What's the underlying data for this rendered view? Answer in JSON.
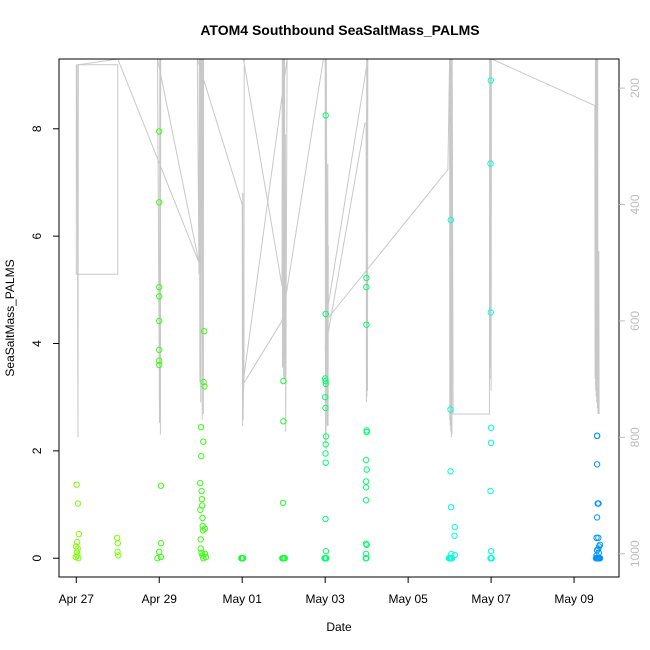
{
  "chart_data": {
    "type": "scatter",
    "title": "ATOM4 Southbound SeaSaltMass_PALMS",
    "xlabel": "Date",
    "ylabel": "SeaSaltMass_PALMS",
    "xlim": [
      "2018-04-26T14:00",
      "2018-05-10T02:00"
    ],
    "ylim": [
      -0.35,
      9.3
    ],
    "x_ticks": [
      {
        "date": "2018-04-27",
        "label": "Apr 27"
      },
      {
        "date": "2018-04-29",
        "label": "Apr 29"
      },
      {
        "date": "2018-05-01",
        "label": "May 01"
      },
      {
        "date": "2018-05-03",
        "label": "May 03"
      },
      {
        "date": "2018-05-05",
        "label": "May 05"
      },
      {
        "date": "2018-05-07",
        "label": "May 07"
      },
      {
        "date": "2018-05-09",
        "label": "May 09"
      }
    ],
    "y_ticks": [
      0,
      2,
      4,
      6,
      8
    ],
    "right_axis": {
      "range": [
        1040,
        150
      ],
      "ticks": [
        200,
        400,
        600,
        800,
        1000
      ],
      "color": "#bdbdbd"
    },
    "grid": false,
    "marker": "open-circle",
    "line_color": "#c8c8c8",
    "series": [
      {
        "color": "#7cff00",
        "points": [
          [
            "2018-04-27T00:10",
            1.37
          ],
          [
            "2018-04-27T01:00",
            1.02
          ],
          [
            "2018-04-27T01:30",
            0.45
          ],
          [
            "2018-04-27T00:30",
            0.3
          ],
          [
            "2018-04-26T23:50",
            0.22
          ],
          [
            "2018-04-27T00:20",
            0.12
          ],
          [
            "2018-04-27T00:40",
            0.05
          ],
          [
            "2018-04-26T23:40",
            0.02
          ],
          [
            "2018-04-27T01:10",
            0.0
          ],
          [
            "2018-04-27T00:50",
            0.18
          ],
          [
            "2018-04-27T23:40",
            0.38
          ],
          [
            "2018-04-28T00:00",
            0.28
          ],
          [
            "2018-04-27T23:50",
            0.12
          ],
          [
            "2018-04-28T00:20",
            0.05
          ]
        ]
      },
      {
        "color": "#38ff10",
        "points": [
          [
            "2018-04-29T00:00",
            7.95
          ],
          [
            "2018-04-29T00:00",
            6.63
          ],
          [
            "2018-04-29T00:00",
            5.05
          ],
          [
            "2018-04-29T00:00",
            4.88
          ],
          [
            "2018-04-29T00:00",
            4.42
          ],
          [
            "2018-04-29T00:00",
            3.88
          ],
          [
            "2018-04-29T00:00",
            3.68
          ],
          [
            "2018-04-29T00:00",
            3.6
          ],
          [
            "2018-04-29T01:00",
            1.35
          ],
          [
            "2018-04-29T01:00",
            0.28
          ],
          [
            "2018-04-29T00:00",
            0.12
          ],
          [
            "2018-04-29T01:00",
            0.02
          ],
          [
            "2018-04-28T23:00",
            0.0
          ],
          [
            "2018-04-29T23:40",
            1.4
          ],
          [
            "2018-04-29T23:50",
            0.9
          ],
          [
            "2018-04-30T00:00",
            0.35
          ],
          [
            "2018-04-30T00:10",
            2.44
          ],
          [
            "2018-04-30T00:20",
            1.9
          ],
          [
            "2018-04-30T00:30",
            1.25
          ],
          [
            "2018-04-30T00:40",
            1.1
          ],
          [
            "2018-04-30T00:50",
            0.98
          ],
          [
            "2018-04-30T01:00",
            0.75
          ],
          [
            "2018-04-30T01:10",
            0.6
          ],
          [
            "2018-04-30T01:20",
            0.52
          ],
          [
            "2018-04-30T01:30",
            2.17
          ],
          [
            "2018-04-30T02:00",
            4.23
          ],
          [
            "2018-04-30T01:40",
            3.28
          ],
          [
            "2018-04-30T02:10",
            3.2
          ],
          [
            "2018-04-30T02:20",
            0.55
          ],
          [
            "2018-04-30T00:00",
            0.18
          ],
          [
            "2018-04-30T00:30",
            0.1
          ],
          [
            "2018-04-30T01:00",
            0.05
          ],
          [
            "2018-04-30T01:30",
            0.0
          ],
          [
            "2018-04-30T02:30",
            0.08
          ],
          [
            "2018-04-30T03:00",
            0.02
          ]
        ]
      },
      {
        "color": "#18ff30",
        "points": [
          [
            "2018-04-30T23:30",
            0.0
          ],
          [
            "2018-04-30T23:50",
            0.0
          ],
          [
            "2018-05-01T00:10",
            0.0
          ],
          [
            "2018-05-01T00:30",
            0.0
          ],
          [
            "2018-05-01T23:50",
            3.3
          ],
          [
            "2018-05-01T23:50",
            2.55
          ],
          [
            "2018-05-01T23:40",
            1.03
          ],
          [
            "2018-05-01T23:10",
            0.0
          ],
          [
            "2018-05-01T23:40",
            0.0
          ],
          [
            "2018-05-02T00:10",
            0.0
          ],
          [
            "2018-05-02T00:40",
            0.0
          ]
        ]
      },
      {
        "color": "#00ff6a",
        "points": [
          [
            "2018-05-03T00:20",
            8.25
          ],
          [
            "2018-05-03T00:20",
            4.55
          ],
          [
            "2018-05-03T00:00",
            3.35
          ],
          [
            "2018-05-03T00:10",
            3.3
          ],
          [
            "2018-05-03T00:20",
            3.25
          ],
          [
            "2018-05-03T00:00",
            3.0
          ],
          [
            "2018-05-03T00:10",
            2.8
          ],
          [
            "2018-05-03T00:30",
            2.27
          ],
          [
            "2018-05-03T00:20",
            2.12
          ],
          [
            "2018-05-03T00:10",
            1.95
          ],
          [
            "2018-05-03T00:20",
            1.78
          ],
          [
            "2018-05-03T00:10",
            0.73
          ],
          [
            "2018-05-03T00:30",
            0.13
          ],
          [
            "2018-05-02T23:40",
            0.0
          ],
          [
            "2018-05-03T00:00",
            0.0
          ],
          [
            "2018-05-03T00:20",
            0.0
          ],
          [
            "2018-05-03T00:40",
            0.0
          ],
          [
            "2018-05-03T23:50",
            5.22
          ],
          [
            "2018-05-03T23:50",
            5.05
          ],
          [
            "2018-05-03T23:50",
            4.35
          ],
          [
            "2018-05-04T00:00",
            2.38
          ],
          [
            "2018-05-04T00:00",
            2.35
          ],
          [
            "2018-05-03T23:40",
            1.83
          ],
          [
            "2018-05-04T00:00",
            1.65
          ],
          [
            "2018-05-03T23:40",
            1.43
          ],
          [
            "2018-05-03T23:40",
            1.32
          ],
          [
            "2018-05-03T23:40",
            1.08
          ],
          [
            "2018-05-03T23:40",
            0.27
          ],
          [
            "2018-05-04T00:00",
            0.25
          ],
          [
            "2018-05-03T23:40",
            0.08
          ],
          [
            "2018-05-03T23:30",
            0.0
          ],
          [
            "2018-05-03T23:50",
            0.0
          ]
        ]
      },
      {
        "color": "#00ffd8",
        "points": [
          [
            "2018-05-06T00:40",
            6.3
          ],
          [
            "2018-05-06T00:30",
            2.77
          ],
          [
            "2018-05-06T00:30",
            1.62
          ],
          [
            "2018-05-06T00:50",
            0.95
          ],
          [
            "2018-05-06T03:00",
            0.58
          ],
          [
            "2018-05-06T02:50",
            0.42
          ],
          [
            "2018-05-06T01:00",
            0.08
          ],
          [
            "2018-05-06T03:00",
            0.06
          ],
          [
            "2018-05-05T23:40",
            0.0
          ],
          [
            "2018-05-06T00:00",
            0.0
          ],
          [
            "2018-05-06T00:20",
            0.0
          ],
          [
            "2018-05-06T00:40",
            0.0
          ],
          [
            "2018-05-06T01:00",
            0.0
          ],
          [
            "2018-05-06T01:20",
            0.0
          ],
          [
            "2018-05-06T23:50",
            8.9
          ],
          [
            "2018-05-06T23:40",
            7.35
          ],
          [
            "2018-05-06T23:50",
            4.58
          ],
          [
            "2018-05-07T00:00",
            2.43
          ],
          [
            "2018-05-07T00:00",
            2.15
          ],
          [
            "2018-05-06T23:40",
            1.25
          ],
          [
            "2018-05-07T00:00",
            0.13
          ],
          [
            "2018-05-06T23:40",
            0.0
          ],
          [
            "2018-05-07T00:00",
            0.0
          ],
          [
            "2018-05-07T00:20",
            0.0
          ]
        ]
      },
      {
        "color": "#0094ff",
        "points": [
          [
            "2018-05-09T13:20",
            2.28
          ],
          [
            "2018-05-09T13:20",
            2.28
          ],
          [
            "2018-05-09T13:20",
            1.75
          ],
          [
            "2018-05-09T13:40",
            1.02
          ],
          [
            "2018-05-09T13:20",
            0.76
          ],
          [
            "2018-05-09T13:00",
            0.38
          ],
          [
            "2018-05-09T14:00",
            0.38
          ],
          [
            "2018-05-09T14:30",
            0.22
          ],
          [
            "2018-05-09T15:00",
            0.25
          ],
          [
            "2018-05-09T14:00",
            0.18
          ],
          [
            "2018-05-09T13:20",
            0.15
          ],
          [
            "2018-05-09T14:20",
            0.1
          ],
          [
            "2018-05-09T13:00",
            0.05
          ],
          [
            "2018-05-09T12:40",
            0.0
          ],
          [
            "2018-05-09T13:00",
            0.0
          ],
          [
            "2018-05-09T13:20",
            0.0
          ],
          [
            "2018-05-09T13:40",
            0.0
          ],
          [
            "2018-05-09T14:00",
            0.0
          ],
          [
            "2018-05-09T14:20",
            0.0
          ],
          [
            "2018-05-09T14:40",
            0.0
          ],
          [
            "2018-05-09T15:00",
            0.0
          ],
          [
            "2018-05-09T14:10",
            1.02
          ]
        ]
      }
    ],
    "secondary_line": {
      "color": "#c8c8c8",
      "points": [
        [
          "2018-04-27T00:00",
          160
        ],
        [
          "2018-04-27T00:00",
          520
        ],
        [
          "2018-04-28T00:00",
          520
        ],
        [
          "2018-04-28T00:00",
          160
        ],
        [
          "2018-04-27T00:30",
          160
        ],
        [
          "2018-04-27T01:00",
          800
        ],
        [
          "2018-04-27T01:10",
          160
        ],
        [
          "2018-04-28T00:00",
          150
        ],
        [
          "2018-04-29T23:00",
          500
        ],
        [
          "2018-04-28T23:00",
          150
        ],
        [
          "2018-04-29T00:10",
          775
        ],
        [
          "2018-04-29T00:20",
          150
        ],
        [
          "2018-04-29T00:30",
          150
        ],
        [
          "2018-04-29T00:40",
          795
        ],
        [
          "2018-04-29T00:50",
          150
        ],
        [
          "2018-04-29T22:00",
          150
        ],
        [
          "2018-04-29T23:00",
          520
        ],
        [
          "2018-04-29T23:10",
          150
        ],
        [
          "2018-04-29T23:30",
          705
        ],
        [
          "2018-04-29T23:40",
          150
        ],
        [
          "2018-04-29T23:50",
          150
        ],
        [
          "2018-04-30T00:00",
          740
        ],
        [
          "2018-04-30T00:20",
          150
        ],
        [
          "2018-04-30T00:40",
          150
        ],
        [
          "2018-04-30T00:50",
          770
        ],
        [
          "2018-04-30T01:00",
          150
        ],
        [
          "2018-04-30T01:20",
          150
        ],
        [
          "2018-04-30T01:30",
          760
        ],
        [
          "2018-04-30T01:40",
          150
        ],
        [
          "2018-04-29T22:00",
          150
        ],
        [
          "2018-05-01T00:00",
          400
        ],
        [
          "2018-05-01T00:10",
          780
        ],
        [
          "2018-05-01T00:20",
          380
        ],
        [
          "2018-05-01T00:30",
          770
        ],
        [
          "2018-05-01T00:40",
          720
        ],
        [
          "2018-05-01T01:00",
          710
        ],
        [
          "2018-05-01T01:10",
          150
        ],
        [
          "2018-05-01T00:40",
          150
        ],
        [
          "2018-05-01T23:00",
          540
        ],
        [
          "2018-05-01T23:10",
          150
        ],
        [
          "2018-05-01T23:20",
          680
        ],
        [
          "2018-05-01T23:30",
          150
        ],
        [
          "2018-05-01T23:40",
          680
        ],
        [
          "2018-05-01T23:50",
          150
        ],
        [
          "2018-05-02T00:00",
          700
        ],
        [
          "2018-05-02T00:10",
          150
        ],
        [
          "2018-05-02T00:20",
          660
        ],
        [
          "2018-05-02T00:30",
          150
        ],
        [
          "2018-05-02T00:40",
          700
        ],
        [
          "2018-05-02T01:00",
          280
        ],
        [
          "2018-05-02T01:10",
          790
        ],
        [
          "2018-05-02T02:00",
          150
        ],
        [
          "2018-05-01T00:20",
          710
        ],
        [
          "2018-05-01T23:00",
          600
        ],
        [
          "2018-05-02T23:00",
          150
        ],
        [
          "2018-05-03T00:00",
          150
        ],
        [
          "2018-05-03T00:10",
          810
        ],
        [
          "2018-05-03T00:20",
          150
        ],
        [
          "2018-05-03T00:30",
          820
        ],
        [
          "2018-05-03T00:40",
          150
        ],
        [
          "2018-05-03T01:00",
          470
        ],
        [
          "2018-05-03T01:10",
          780
        ],
        [
          "2018-05-03T01:30",
          330
        ],
        [
          "2018-05-03T01:40",
          780
        ],
        [
          "2018-05-03T01:50",
          470
        ],
        [
          "2018-05-03T00:00",
          650
        ],
        [
          "2018-05-03T23:00",
          260
        ],
        [
          "2018-05-03T23:40",
          260
        ],
        [
          "2018-05-03T23:50",
          740
        ],
        [
          "2018-05-04T00:00",
          150
        ],
        [
          "2018-05-04T00:10",
          730
        ],
        [
          "2018-05-04T00:20",
          150
        ],
        [
          "2018-05-04T00:30",
          720
        ],
        [
          "2018-05-04T00:40",
          150
        ],
        [
          "2018-05-03T00:20",
          600
        ],
        [
          "2018-05-05T23:00",
          340
        ],
        [
          "2018-05-06T00:00",
          150
        ],
        [
          "2018-05-06T00:05",
          770
        ],
        [
          "2018-05-06T00:10",
          150
        ],
        [
          "2018-05-06T00:20",
          780
        ],
        [
          "2018-05-06T00:30",
          150
        ],
        [
          "2018-05-06T00:40",
          790
        ],
        [
          "2018-05-06T00:50",
          150
        ],
        [
          "2018-05-06T01:00",
          800
        ],
        [
          "2018-05-06T01:10",
          150
        ],
        [
          "2018-05-06T01:20",
          795
        ],
        [
          "2018-05-06T01:30",
          150
        ],
        [
          "2018-05-06T01:30",
          150
        ],
        [
          "2018-05-06T02:00",
          760
        ],
        [
          "2018-05-06T23:00",
          760
        ],
        [
          "2018-05-06T23:10",
          150
        ],
        [
          "2018-05-06T23:20",
          700
        ],
        [
          "2018-05-06T23:30",
          150
        ],
        [
          "2018-05-06T23:40",
          680
        ],
        [
          "2018-05-06T23:50",
          150
        ],
        [
          "2018-05-07T00:00",
          720
        ],
        [
          "2018-05-07T00:10",
          150
        ],
        [
          "2018-05-07T00:20",
          150
        ],
        [
          "2018-05-09T12:00",
          230
        ],
        [
          "2018-05-09T12:10",
          700
        ],
        [
          "2018-05-09T12:20",
          150
        ],
        [
          "2018-05-09T12:30",
          720
        ],
        [
          "2018-05-09T12:40",
          150
        ],
        [
          "2018-05-09T12:50",
          730
        ],
        [
          "2018-05-09T13:00",
          150
        ],
        [
          "2018-05-09T13:10",
          740
        ],
        [
          "2018-05-09T13:20",
          150
        ],
        [
          "2018-05-09T13:30",
          750
        ],
        [
          "2018-05-09T13:40",
          150
        ],
        [
          "2018-05-09T13:50",
          760
        ],
        [
          "2018-05-09T14:00",
          480
        ],
        [
          "2018-05-09T14:10",
          760
        ],
        [
          "2018-05-09T14:20",
          480
        ],
        [
          "2018-05-09T14:30",
          760
        ]
      ]
    }
  }
}
